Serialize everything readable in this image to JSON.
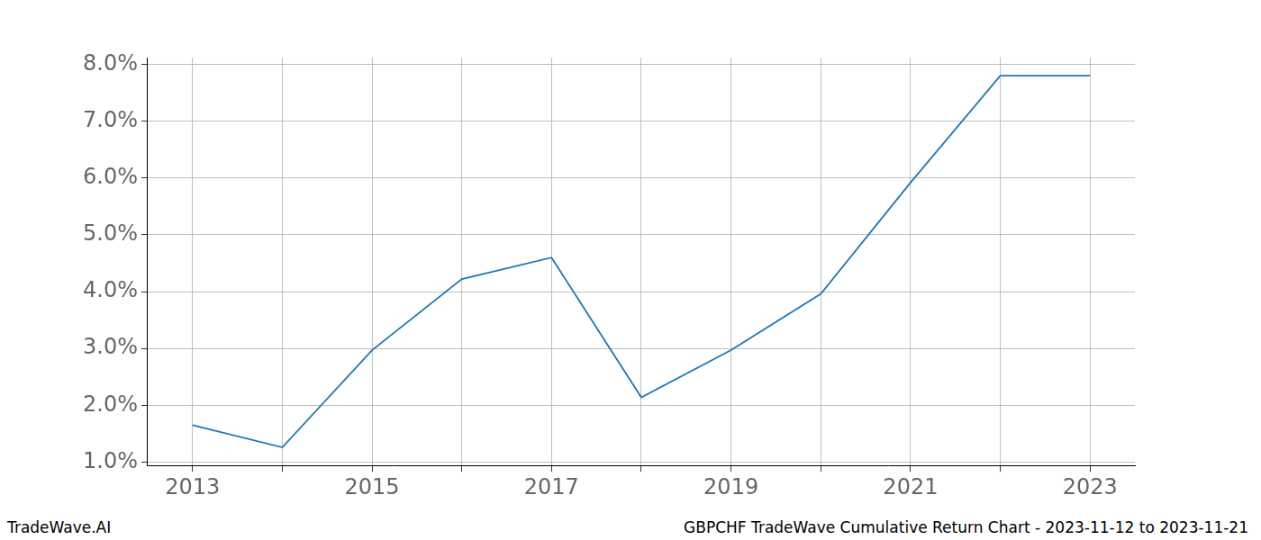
{
  "chart_data": {
    "type": "line",
    "title": "GBPCHF TradeWave Cumulative Return Chart - 2023-11-12 to 2023-11-21",
    "annotations": [
      "TradeWave.AI"
    ],
    "categories": [
      "2013",
      null,
      "2015",
      null,
      "2017",
      null,
      "2019",
      null,
      "2021",
      null,
      "2023"
    ],
    "values": [
      1.65,
      1.26,
      2.97,
      4.22,
      4.6,
      2.14,
      2.97,
      3.96,
      5.92,
      7.8,
      7.8
    ],
    "color": "#1f77b4",
    "marker": "none",
    "ylim": [
      0.94,
      8.12
    ],
    "yticks": [
      {
        "value": 1,
        "label": "1.0%"
      },
      {
        "value": 2,
        "label": "2.0%"
      },
      {
        "value": 3,
        "label": "3.0%"
      },
      {
        "value": 4,
        "label": "4.0%"
      },
      {
        "value": 5,
        "label": "5.0%"
      },
      {
        "value": 6,
        "label": "6.0%"
      },
      {
        "value": 7,
        "label": "7.0%"
      },
      {
        "value": 8,
        "label": "8.0%"
      }
    ],
    "grid": true
  }
}
